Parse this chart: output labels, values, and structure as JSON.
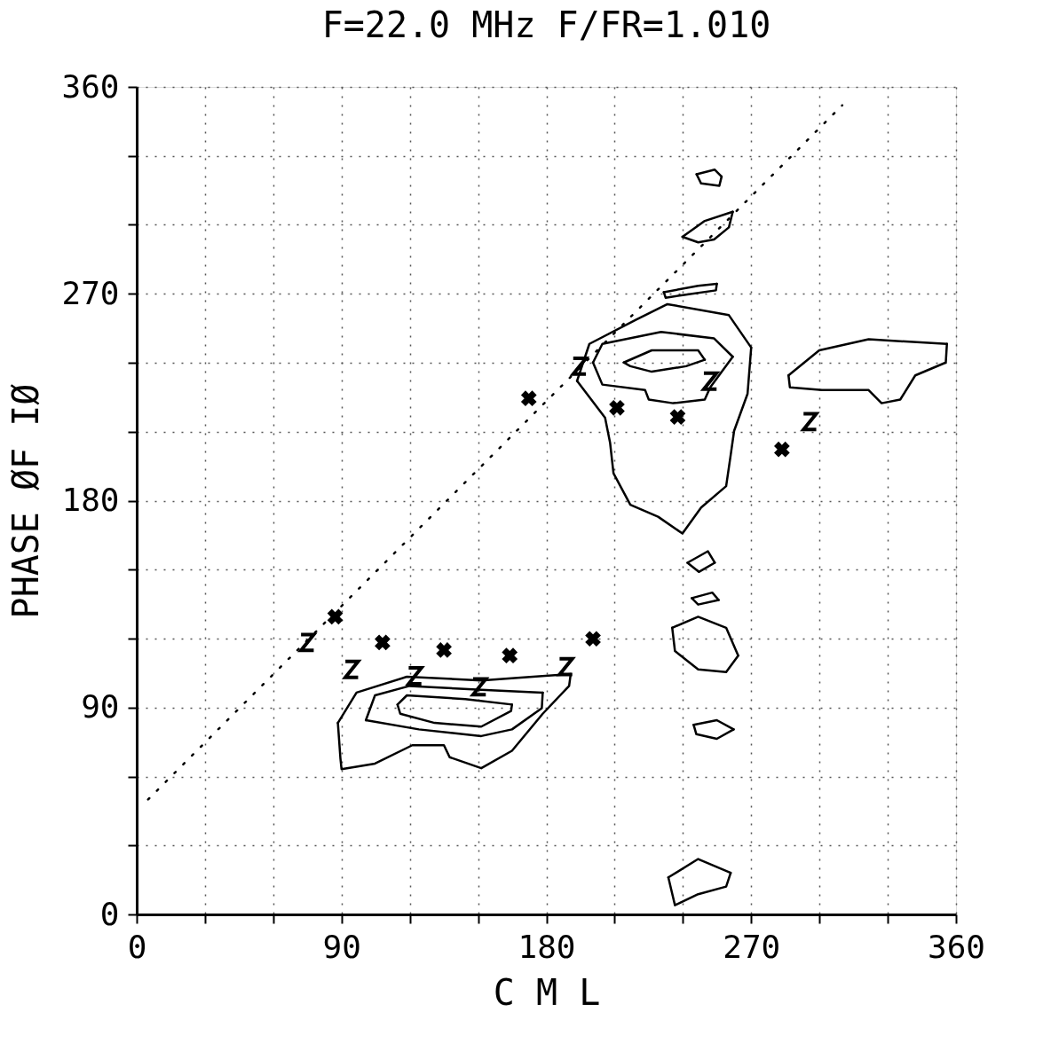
{
  "chart_data": {
    "type": "scatter",
    "title": "F=22.0 MHz   F/FR=1.010",
    "xlabel": "C M L",
    "ylabel": "PHASE ØF IØ",
    "xlim": [
      0,
      360
    ],
    "ylim": [
      0,
      360
    ],
    "xticks": [
      0,
      {
        "value": 30,
        "label": null
      },
      {
        "value": 60,
        "label": null
      },
      90,
      {
        "value": 120,
        "label": null
      },
      {
        "value": 150,
        "label": null
      },
      180,
      {
        "value": 210,
        "label": null
      },
      {
        "value": 240,
        "label": null
      },
      270,
      {
        "value": 300,
        "label": null
      },
      {
        "value": 330,
        "label": null
      },
      360
    ],
    "yticks": [
      0,
      {
        "value": 30,
        "label": null
      },
      {
        "value": 60,
        "label": null
      },
      90,
      {
        "value": 120,
        "label": null
      },
      {
        "value": 150,
        "label": null
      },
      180,
      {
        "value": 210,
        "label": null
      },
      {
        "value": 240,
        "label": null
      },
      270,
      {
        "value": 300,
        "label": null
      },
      {
        "value": 330,
        "label": null
      },
      360
    ],
    "grid": true,
    "series": [
      {
        "marker": "cross",
        "color": "#000000",
        "x": [
          87.2,
          108,
          135,
          163.9,
          200.5,
          172.3,
          211,
          237.7,
          283.5
        ],
        "values": [
          129.5,
          118.3,
          115,
          112.6,
          119.9,
          224.5,
          220.4,
          216.4,
          202.3
        ]
      },
      {
        "color": "#000000",
        "x": [
          75,
          94.5,
          122.3,
          150.6,
          188.6,
          194.6,
          252,
          295.8
        ],
        "values": [
          118.3,
          106.6,
          103.8,
          99,
          107.8,
          238.5,
          232,
          214.4
        ]
      },
      {
        "type": "line",
        "line_style": "dotted",
        "color": "#000000",
        "x": [
          5,
          310
        ],
        "values": [
          50,
          352
        ]
      },
      {
        "type": "line",
        "line_style": "solid",
        "color": "#000000",
        "x": [
          88.4,
          96.6,
          118.7,
          151.4,
          190.7
        ],
        "values": [
          83.3,
          96.5,
          103.4,
          101.8,
          104.6
        ]
      },
      {
        "type": "line",
        "line_style": "solid",
        "color": "#000000",
        "x": [
          88.4,
          89.5,
          90,
          104.7,
          121.1,
          135,
          137.5,
          151.4,
          164.9,
          178.4,
          190,
          190.7
        ],
        "values": [
          83.3,
          68,
          63.2,
          65.6,
          73.6,
          73.6,
          68.4,
          63.6,
          71.2,
          87.3,
          99.4,
          104.6
        ]
      },
      {
        "type": "line",
        "line_style": "solid",
        "color": "#000000",
        "x": [
          100.7,
          104.7,
          119.9,
          151.4,
          178.4
        ],
        "values": [
          84.5,
          95.3,
          99.4,
          97.7,
          96.5
        ]
      },
      {
        "type": "line",
        "line_style": "solid",
        "color": "#000000",
        "x": [
          100.7,
          124,
          151.4,
          164.9,
          178,
          178.4
        ],
        "values": [
          84.5,
          80.5,
          77.6,
          80.5,
          89.7,
          96.5
        ]
      },
      {
        "type": "line",
        "line_style": "solid",
        "color": "#000000",
        "x": [
          114.6,
          118.7,
          144.4,
          164.9
        ],
        "values": [
          91.3,
          95.3,
          93.7,
          91.3
        ]
      },
      {
        "type": "line",
        "line_style": "solid",
        "color": "#000000",
        "x": [
          114.6,
          115.8,
          130.9,
          151.4,
          164.5,
          164.9
        ],
        "values": [
          91.3,
          87.3,
          83.3,
          81.7,
          88.5,
          91.3
        ]
      },
      {
        "type": "line",
        "line_style": "solid",
        "color": "#000000",
        "x": [
          193.5,
          198.9,
          219.3,
          233.2,
          260.2,
          270
        ],
        "values": [
          232.1,
          248.2,
          258.7,
          265.5,
          260.7,
          246.6
        ]
      },
      {
        "type": "line",
        "line_style": "solid",
        "color": "#000000",
        "x": [
          193.5,
          205.8,
          208,
          209.5,
          216.9,
          229.1,
          239.8,
          248,
          259,
          261,
          262.5,
          268.4,
          270
        ],
        "values": [
          232.1,
          216.1,
          205.2,
          191.9,
          178.2,
          173,
          165.7,
          177,
          186.3,
          199.9,
          210.4,
          226.5,
          246.6
        ]
      },
      {
        "type": "line",
        "line_style": "solid",
        "color": "#000000",
        "x": [
          200.5,
          204.6,
          230.4,
          253.7,
          261.9
        ],
        "values": [
          240.1,
          248.2,
          253.4,
          250.6,
          242.6
        ]
      },
      {
        "type": "line",
        "line_style": "solid",
        "color": "#000000",
        "x": [
          200.5,
          204.6,
          223.4,
          225,
          235.7,
          249.6,
          252,
          261.9
        ],
        "values": [
          240.1,
          230.5,
          228.1,
          224,
          222.4,
          224,
          229.3,
          242.6
        ]
      },
      {
        "type": "line",
        "line_style": "solid",
        "color": "#000000",
        "x": [
          214,
          226.3,
          246.7,
          249.6
        ],
        "values": [
          240.1,
          245.4,
          245.4,
          241.3
        ]
      },
      {
        "type": "line",
        "line_style": "solid",
        "color": "#000000",
        "x": [
          214,
          216.9,
          226.3,
          241.4,
          249.6
        ],
        "values": [
          240.1,
          238.5,
          236.1,
          238.5,
          241.3
        ]
      },
      {
        "type": "line",
        "line_style": "solid",
        "color": "#000000",
        "x": [
          286.4,
          299.9,
          321.6,
          356
        ],
        "values": [
          234.5,
          245.4,
          250.2,
          248.2
        ]
      },
      {
        "type": "line",
        "line_style": "solid",
        "color": "#000000",
        "x": [
          286.4,
          287,
          301.1,
          321.6,
          327.3,
          335.5,
          342.1,
          355.5,
          356
        ],
        "values": [
          234.5,
          229.3,
          228.1,
          228.1,
          222.4,
          224,
          234.5,
          240.1,
          248.2
        ]
      },
      {
        "type": "line",
        "line_style": "solid",
        "color": "#000000",
        "x": [
          239.8,
          249.6,
          261.9
        ],
        "values": [
          294.8,
          301.7,
          305.7
        ]
      },
      {
        "type": "line",
        "line_style": "solid",
        "color": "#000000",
        "x": [
          239.8,
          246.7,
          253.7,
          260.2,
          261.9
        ],
        "values": [
          294.8,
          292.4,
          293.6,
          298.9,
          305.7
        ]
      },
      {
        "type": "line",
        "line_style": "solid",
        "color": "#000000",
        "x": [
          246,
          254,
          257
        ],
        "values": [
          322,
          324,
          321
        ]
      },
      {
        "type": "line",
        "line_style": "solid",
        "color": "#000000",
        "x": [
          246,
          248,
          256,
          257
        ],
        "values": [
          322,
          318,
          317,
          321
        ]
      },
      {
        "type": "line",
        "line_style": "solid",
        "color": "#000000",
        "x": [
          231.6,
          246.7,
          254.9
        ],
        "values": [
          270.7,
          273.5,
          274.3
        ]
      },
      {
        "type": "line",
        "line_style": "solid",
        "color": "#000000",
        "x": [
          231.6,
          232.4,
          240.6,
          254.5,
          254.9
        ],
        "values": [
          270.7,
          268.3,
          269.5,
          271.5,
          274.3
        ]
      },
      {
        "type": "line",
        "line_style": "solid",
        "color": "#000000",
        "x": [
          242,
          251,
          254
        ],
        "values": [
          153,
          158,
          153
        ]
      },
      {
        "type": "line",
        "line_style": "solid",
        "color": "#000000",
        "x": [
          242,
          247,
          254
        ],
        "values": [
          153,
          149,
          153
        ]
      },
      {
        "type": "line",
        "line_style": "solid",
        "color": "#000000",
        "x": [
          243.9,
          252.9,
          255.7
        ],
        "values": [
          137.6,
          140,
          136.8
        ]
      },
      {
        "type": "line",
        "line_style": "solid",
        "color": "#000000",
        "x": [
          243.9,
          246.7,
          255.7
        ],
        "values": [
          137.6,
          134.8,
          136.8
        ]
      },
      {
        "type": "line",
        "line_style": "solid",
        "color": "#000000",
        "x": [
          235.3,
          246.7,
          259,
          264.3
        ],
        "values": [
          124.7,
          129.5,
          124.7,
          112.6
        ]
      },
      {
        "type": "line",
        "line_style": "solid",
        "color": "#000000",
        "x": [
          235.3,
          236.5,
          246.7,
          259,
          264.3
        ],
        "values": [
          124.7,
          114.6,
          106.6,
          105.4,
          112.6
        ]
      },
      {
        "type": "line",
        "line_style": "solid",
        "color": "#000000",
        "x": [
          244.7,
          254.9,
          262.3
        ],
        "values": [
          82.5,
          84.5,
          80.5
        ]
      },
      {
        "type": "line",
        "line_style": "solid",
        "color": "#000000",
        "x": [
          244.7,
          245.9,
          254.9,
          262.3
        ],
        "values": [
          82.5,
          78.4,
          76.4,
          80.5
        ]
      },
      {
        "type": "line",
        "line_style": "solid",
        "color": "#000000",
        "x": [
          233.6,
          246.7,
          261
        ],
        "values": [
          16.1,
          24.1,
          18.1
        ]
      },
      {
        "type": "line",
        "line_style": "solid",
        "color": "#000000",
        "x": [
          233.6,
          236.5,
          246.7,
          259,
          261
        ],
        "values": [
          16.1,
          4.0,
          8.8,
          12.1,
          18.1
        ]
      }
    ]
  }
}
